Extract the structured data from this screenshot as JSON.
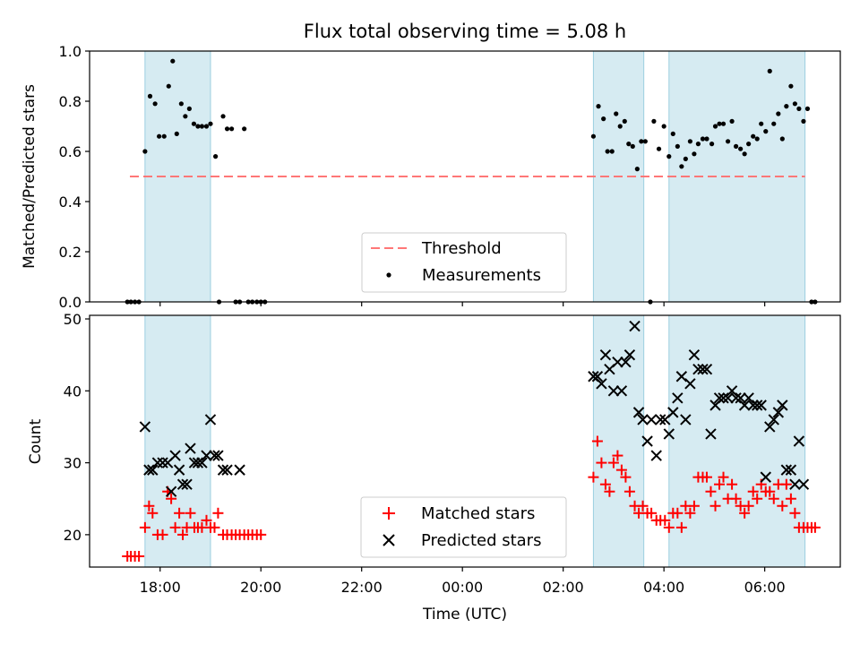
{
  "chart_data": [
    {
      "type": "scatter",
      "title": "Flux total observing time = 5.08 h",
      "ylabel": "Matched/Predicted stars",
      "xlabel": "",
      "x_unit": "hours since 00:00 UTC (negative = previous evening)",
      "xlim": [
        -7.4,
        7.5
      ],
      "ylim": [
        0.0,
        1.0
      ],
      "yticks": [
        "0.0",
        "0.2",
        "0.4",
        "0.6",
        "0.8",
        "1.0"
      ],
      "legend": [
        "Threshold",
        "Measurements"
      ],
      "legend_position": "lower center",
      "threshold": {
        "name": "Threshold",
        "y": 0.5,
        "x_range": [
          -6.6,
          6.8
        ],
        "color": "#ff7777"
      },
      "shaded_intervals": [
        [
          -6.3,
          -5.0
        ],
        [
          2.6,
          3.6
        ],
        [
          4.1,
          6.8
        ]
      ],
      "series": [
        {
          "name": "Measurements",
          "color": "#000000",
          "points": [
            [
              -6.65,
              0.0
            ],
            [
              -6.58,
              0.0
            ],
            [
              -6.5,
              0.0
            ],
            [
              -6.42,
              0.0
            ],
            [
              -6.3,
              0.6
            ],
            [
              -6.2,
              0.82
            ],
            [
              -6.1,
              0.79
            ],
            [
              -6.02,
              0.66
            ],
            [
              -5.92,
              0.66
            ],
            [
              -5.83,
              0.86
            ],
            [
              -5.75,
              0.96
            ],
            [
              -5.67,
              0.67
            ],
            [
              -5.58,
              0.79
            ],
            [
              -5.5,
              0.74
            ],
            [
              -5.42,
              0.77
            ],
            [
              -5.33,
              0.71
            ],
            [
              -5.25,
              0.7
            ],
            [
              -5.17,
              0.7
            ],
            [
              -5.08,
              0.7
            ],
            [
              -5.0,
              0.71
            ],
            [
              -4.9,
              0.58
            ],
            [
              -4.83,
              0.0
            ],
            [
              -4.75,
              0.74
            ],
            [
              -4.67,
              0.69
            ],
            [
              -4.58,
              0.69
            ],
            [
              -4.5,
              0.0
            ],
            [
              -4.42,
              0.0
            ],
            [
              -4.33,
              0.69
            ],
            [
              -4.25,
              0.0
            ],
            [
              -4.17,
              0.0
            ],
            [
              -4.08,
              0.0
            ],
            [
              -4.0,
              0.0
            ],
            [
              -3.92,
              0.0
            ],
            [
              2.6,
              0.66
            ],
            [
              2.7,
              0.78
            ],
            [
              2.8,
              0.73
            ],
            [
              2.88,
              0.6
            ],
            [
              2.97,
              0.6
            ],
            [
              3.05,
              0.75
            ],
            [
              3.13,
              0.7
            ],
            [
              3.22,
              0.72
            ],
            [
              3.3,
              0.63
            ],
            [
              3.38,
              0.62
            ],
            [
              3.47,
              0.53
            ],
            [
              3.55,
              0.64
            ],
            [
              3.63,
              0.64
            ],
            [
              3.73,
              0.0
            ],
            [
              3.8,
              0.72
            ],
            [
              3.9,
              0.61
            ],
            [
              4.0,
              0.7
            ],
            [
              4.1,
              0.58
            ],
            [
              4.18,
              0.67
            ],
            [
              4.27,
              0.62
            ],
            [
              4.35,
              0.54
            ],
            [
              4.43,
              0.57
            ],
            [
              4.52,
              0.64
            ],
            [
              4.6,
              0.59
            ],
            [
              4.68,
              0.63
            ],
            [
              4.77,
              0.65
            ],
            [
              4.85,
              0.65
            ],
            [
              4.95,
              0.63
            ],
            [
              5.02,
              0.7
            ],
            [
              5.1,
              0.71
            ],
            [
              5.18,
              0.71
            ],
            [
              5.27,
              0.64
            ],
            [
              5.35,
              0.72
            ],
            [
              5.43,
              0.62
            ],
            [
              5.52,
              0.61
            ],
            [
              5.6,
              0.59
            ],
            [
              5.68,
              0.63
            ],
            [
              5.77,
              0.66
            ],
            [
              5.85,
              0.65
            ],
            [
              5.93,
              0.71
            ],
            [
              6.02,
              0.68
            ],
            [
              6.1,
              0.92
            ],
            [
              6.18,
              0.71
            ],
            [
              6.27,
              0.75
            ],
            [
              6.35,
              0.65
            ],
            [
              6.43,
              0.78
            ],
            [
              6.52,
              0.86
            ],
            [
              6.6,
              0.79
            ],
            [
              6.68,
              0.77
            ],
            [
              6.77,
              0.72
            ],
            [
              6.85,
              0.77
            ],
            [
              6.93,
              0.0
            ],
            [
              7.0,
              0.0
            ]
          ]
        }
      ]
    },
    {
      "type": "scatter",
      "title": "",
      "ylabel": "Count",
      "xlabel": "Time (UTC)",
      "x_unit": "hours since 00:00 UTC (negative = previous evening)",
      "xlim": [
        -7.4,
        7.5
      ],
      "ylim": [
        15.5,
        50.5
      ],
      "xticks": [
        {
          "x": -6,
          "label": "18:00"
        },
        {
          "x": -4,
          "label": "20:00"
        },
        {
          "x": -2,
          "label": "22:00"
        },
        {
          "x": 0,
          "label": "00:00"
        },
        {
          "x": 2,
          "label": "02:00"
        },
        {
          "x": 4,
          "label": "04:00"
        },
        {
          "x": 6,
          "label": "06:00"
        }
      ],
      "yticks": [
        "20",
        "30",
        "40",
        "50"
      ],
      "legend": [
        "Matched stars",
        "Predicted stars"
      ],
      "legend_position": "lower center",
      "shaded_intervals": [
        [
          -6.3,
          -5.0
        ],
        [
          2.6,
          3.6
        ],
        [
          4.1,
          6.8
        ]
      ],
      "series": [
        {
          "name": "Matched stars",
          "marker": "+",
          "color": "#ff0000",
          "points": [
            [
              -6.65,
              17
            ],
            [
              -6.58,
              17
            ],
            [
              -6.5,
              17
            ],
            [
              -6.42,
              17
            ],
            [
              -6.3,
              21
            ],
            [
              -6.22,
              24
            ],
            [
              -6.15,
              23
            ],
            [
              -6.05,
              20
            ],
            [
              -5.95,
              20
            ],
            [
              -5.85,
              26
            ],
            [
              -5.78,
              25
            ],
            [
              -5.7,
              21
            ],
            [
              -5.62,
              23
            ],
            [
              -5.55,
              20
            ],
            [
              -5.47,
              21
            ],
            [
              -5.4,
              23
            ],
            [
              -5.32,
              21
            ],
            [
              -5.25,
              21
            ],
            [
              -5.17,
              21
            ],
            [
              -5.08,
              22
            ],
            [
              -5.0,
              21
            ],
            [
              -4.92,
              21
            ],
            [
              -4.85,
              23
            ],
            [
              -4.75,
              20
            ],
            [
              -4.67,
              20
            ],
            [
              -4.58,
              20
            ],
            [
              -4.5,
              20
            ],
            [
              -4.42,
              20
            ],
            [
              -4.33,
              20
            ],
            [
              -4.25,
              20
            ],
            [
              -4.17,
              20
            ],
            [
              -4.08,
              20
            ],
            [
              -4.0,
              20
            ],
            [
              2.6,
              28
            ],
            [
              2.68,
              33
            ],
            [
              2.76,
              30
            ],
            [
              2.84,
              27
            ],
            [
              2.92,
              26
            ],
            [
              3.0,
              30
            ],
            [
              3.08,
              31
            ],
            [
              3.16,
              29
            ],
            [
              3.24,
              28
            ],
            [
              3.32,
              26
            ],
            [
              3.42,
              24
            ],
            [
              3.5,
              23
            ],
            [
              3.58,
              24
            ],
            [
              3.67,
              23
            ],
            [
              3.75,
              23
            ],
            [
              3.85,
              22
            ],
            [
              3.93,
              22
            ],
            [
              4.02,
              22
            ],
            [
              4.1,
              21
            ],
            [
              4.18,
              23
            ],
            [
              4.27,
              23
            ],
            [
              4.35,
              21
            ],
            [
              4.43,
              24
            ],
            [
              4.52,
              23
            ],
            [
              4.6,
              24
            ],
            [
              4.68,
              28
            ],
            [
              4.77,
              28
            ],
            [
              4.85,
              28
            ],
            [
              4.93,
              26
            ],
            [
              5.02,
              24
            ],
            [
              5.1,
              27
            ],
            [
              5.18,
              28
            ],
            [
              5.27,
              25
            ],
            [
              5.35,
              27
            ],
            [
              5.43,
              25
            ],
            [
              5.52,
              24
            ],
            [
              5.6,
              23
            ],
            [
              5.68,
              24
            ],
            [
              5.77,
              26
            ],
            [
              5.85,
              25
            ],
            [
              5.93,
              27
            ],
            [
              6.02,
              26
            ],
            [
              6.1,
              26
            ],
            [
              6.18,
              25
            ],
            [
              6.27,
              27
            ],
            [
              6.35,
              24
            ],
            [
              6.43,
              27
            ],
            [
              6.52,
              25
            ],
            [
              6.6,
              23
            ],
            [
              6.68,
              21
            ],
            [
              6.77,
              21
            ],
            [
              6.85,
              21
            ],
            [
              6.93,
              21
            ],
            [
              7.0,
              21
            ]
          ]
        },
        {
          "name": "Predicted stars",
          "marker": "x",
          "color": "#000000",
          "points": [
            [
              -6.3,
              35
            ],
            [
              -6.22,
              29
            ],
            [
              -6.15,
              29
            ],
            [
              -6.05,
              30
            ],
            [
              -5.95,
              30
            ],
            [
              -5.85,
              30
            ],
            [
              -5.78,
              26
            ],
            [
              -5.7,
              31
            ],
            [
              -5.62,
              29
            ],
            [
              -5.55,
              27
            ],
            [
              -5.47,
              27
            ],
            [
              -5.4,
              32
            ],
            [
              -5.32,
              30
            ],
            [
              -5.25,
              30
            ],
            [
              -5.17,
              30
            ],
            [
              -5.08,
              31
            ],
            [
              -5.0,
              36
            ],
            [
              -4.92,
              31
            ],
            [
              -4.85,
              31
            ],
            [
              -4.75,
              29
            ],
            [
              -4.67,
              29
            ],
            [
              -4.42,
              29
            ],
            [
              2.6,
              42
            ],
            [
              2.68,
              42
            ],
            [
              2.76,
              41
            ],
            [
              2.84,
              45
            ],
            [
              2.92,
              43
            ],
            [
              3.0,
              40
            ],
            [
              3.08,
              44
            ],
            [
              3.16,
              40
            ],
            [
              3.24,
              44
            ],
            [
              3.32,
              45
            ],
            [
              3.42,
              49
            ],
            [
              3.5,
              37
            ],
            [
              3.58,
              36
            ],
            [
              3.67,
              33
            ],
            [
              3.75,
              36
            ],
            [
              3.85,
              31
            ],
            [
              3.93,
              36
            ],
            [
              4.02,
              36
            ],
            [
              4.1,
              34
            ],
            [
              4.18,
              37
            ],
            [
              4.27,
              39
            ],
            [
              4.35,
              42
            ],
            [
              4.43,
              36
            ],
            [
              4.52,
              41
            ],
            [
              4.6,
              45
            ],
            [
              4.68,
              43
            ],
            [
              4.77,
              43
            ],
            [
              4.85,
              43
            ],
            [
              4.93,
              34
            ],
            [
              5.02,
              38
            ],
            [
              5.1,
              39
            ],
            [
              5.18,
              39
            ],
            [
              5.27,
              39
            ],
            [
              5.35,
              40
            ],
            [
              5.43,
              39
            ],
            [
              5.52,
              39
            ],
            [
              5.6,
              38
            ],
            [
              5.68,
              39
            ],
            [
              5.77,
              38
            ],
            [
              5.85,
              38
            ],
            [
              5.93,
              38
            ],
            [
              6.02,
              28
            ],
            [
              6.1,
              35
            ],
            [
              6.18,
              36
            ],
            [
              6.27,
              37
            ],
            [
              6.35,
              38
            ],
            [
              6.43,
              29
            ],
            [
              6.52,
              29
            ],
            [
              6.6,
              27
            ],
            [
              6.68,
              33
            ],
            [
              6.77,
              27
            ]
          ]
        }
      ]
    }
  ]
}
